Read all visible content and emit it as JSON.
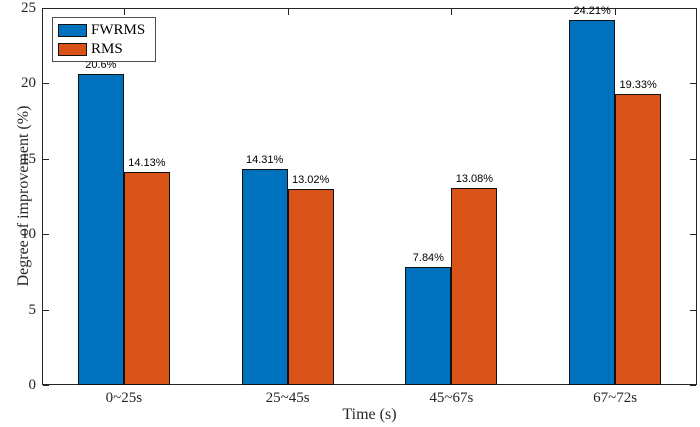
{
  "chart_data": {
    "type": "bar",
    "title": "",
    "xlabel": "Time (s)",
    "ylabel": "Degree of improvement (%)",
    "categories": [
      "0~25s",
      "25~45s",
      "45~67s",
      "67~72s"
    ],
    "series": [
      {
        "name": "FWRMS",
        "color": "#0072BD",
        "values": [
          20.6,
          14.31,
          7.84,
          24.21
        ],
        "labels": [
          "20.6%",
          "14.31%",
          "7.84%",
          "24.21%"
        ]
      },
      {
        "name": "RMS",
        "color": "#D95319",
        "values": [
          14.13,
          13.02,
          13.08,
          19.33
        ],
        "labels": [
          "14.13%",
          "13.02%",
          "13.08%",
          "19.33%"
        ]
      }
    ],
    "ylim": [
      0,
      25
    ],
    "yticks": [
      0,
      5,
      10,
      15,
      20,
      25
    ],
    "ytick_labels": [
      "0",
      "5",
      "10",
      "15",
      "20",
      "25"
    ],
    "legend_position": "top-left",
    "grid": false,
    "axis_color": "#262626",
    "bar_edge_color": "#111111",
    "background_color": "#ffffff"
  }
}
